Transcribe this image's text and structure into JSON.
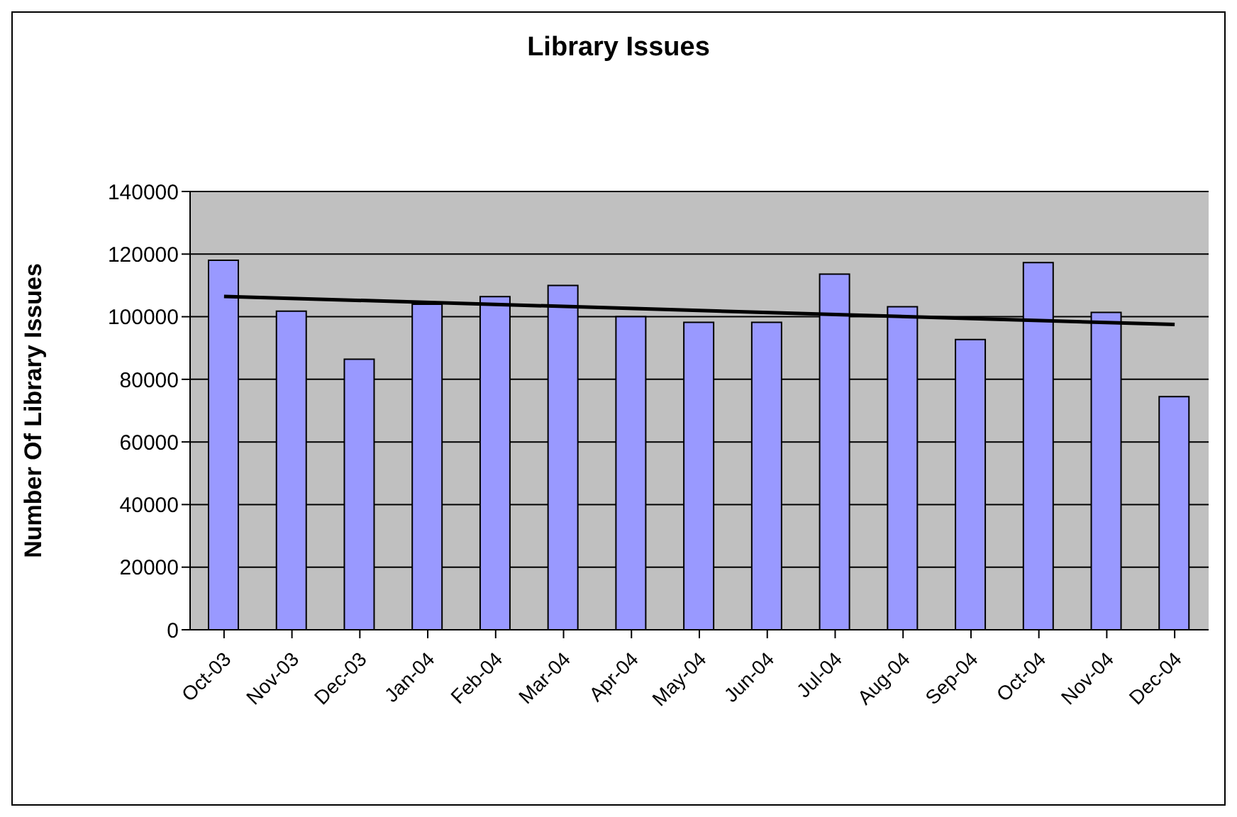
{
  "chart_data": {
    "type": "bar",
    "title": "Library Issues",
    "ylabel": "Number Of Library Issues",
    "categories": [
      "Oct-03",
      "Nov-03",
      "Dec-03",
      "Jan-04",
      "Feb-04",
      "Mar-04",
      "Apr-04",
      "May-04",
      "Jun-04",
      "Jul-04",
      "Aug-04",
      "Sep-04",
      "Oct-04",
      "Nov-04",
      "Dec-04"
    ],
    "series": [
      {
        "color": "#9999ff",
        "values": [
          118000,
          101800,
          86400,
          104000,
          106400,
          110000,
          100000,
          98200,
          98200,
          113600,
          103200,
          92700,
          117300,
          101400,
          74500
        ]
      },
      {
        "type": "line",
        "color": "#000000",
        "x": [
          "Oct-03",
          "Dec-04"
        ],
        "values": [
          106500,
          97500
        ]
      }
    ],
    "ylim": [
      0,
      140000
    ],
    "yticks": [
      0,
      20000,
      40000,
      60000,
      80000,
      100000,
      120000,
      140000
    ],
    "grid": "y",
    "legend": false
  }
}
